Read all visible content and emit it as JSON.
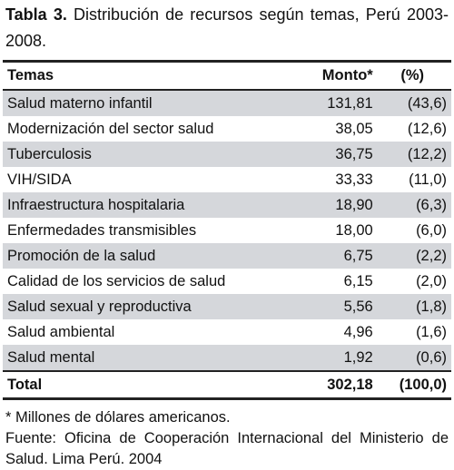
{
  "title": {
    "label": "Tabla 3.",
    "text": "Distribución de recursos según temas, Perú 2003-2008."
  },
  "table": {
    "header": [
      "Temas",
      "Monto*",
      "(%)"
    ],
    "rows": [
      [
        "Salud materno infantil",
        "131,81",
        "(43,6)"
      ],
      [
        "Modernización del sector salud",
        "38,05",
        "(12,6)"
      ],
      [
        "Tuberculosis",
        "36,75",
        "(12,2)"
      ],
      [
        "VIH/SIDA",
        "33,33",
        "(11,0)"
      ],
      [
        "Infraestructura hospitalaria",
        "18,90",
        "(6,3)"
      ],
      [
        "Enfermedades transmisibles",
        "18,00",
        "(6,0)"
      ],
      [
        "Promoción de la salud",
        "6,75",
        "(2,2)"
      ],
      [
        "Calidad de los servicios de salud",
        "6,15",
        "(2,0)"
      ],
      [
        "Salud sexual y reproductiva",
        "5,56",
        "(1,8)"
      ],
      [
        "Salud ambiental",
        "4,96",
        "(1,6)"
      ],
      [
        "Salud mental",
        "1,92",
        "(0,6)"
      ]
    ],
    "total": [
      "Total",
      "302,18",
      "(100,0)"
    ]
  },
  "notes": [
    "* Millones de dólares americanos.",
    "Fuente: Oficina de Cooperación Internacional del Ministerio de Salud. Lima Perú. 2004"
  ]
}
